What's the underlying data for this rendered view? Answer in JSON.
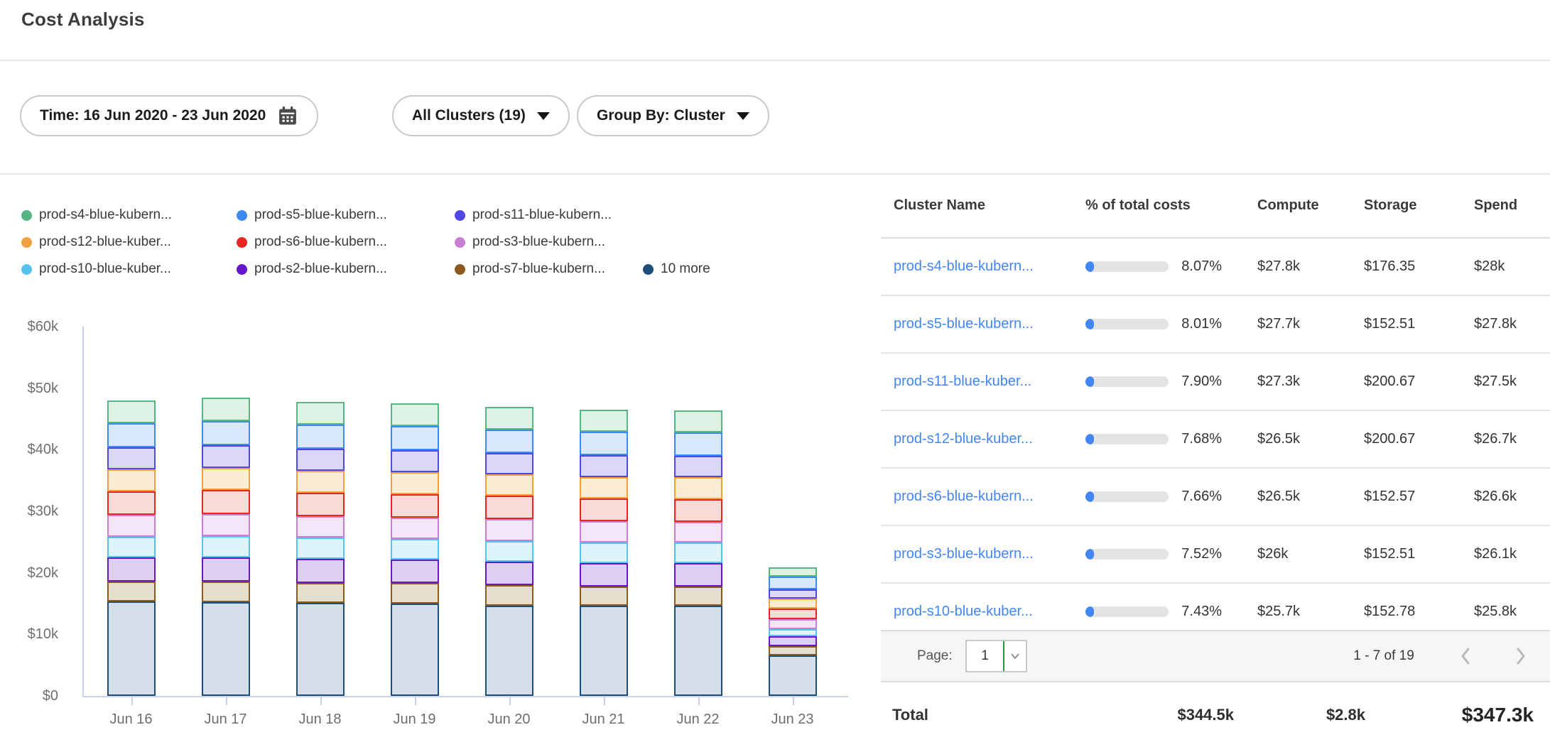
{
  "title": "Cost Analysis",
  "filters": {
    "time": {
      "label": "Time: 16 Jun 2020 - 23 Jun 2020"
    },
    "clusters": {
      "label": "All Clusters (19)"
    },
    "group_by": {
      "label": "Group By: Cluster"
    }
  },
  "chart_data": {
    "type": "bar",
    "stacked": true,
    "unit": "USD thousands",
    "ylim": [
      0,
      60000
    ],
    "grid": false,
    "legend_position": "top",
    "categories": [
      "Jun 16",
      "Jun 17",
      "Jun 18",
      "Jun 19",
      "Jun 20",
      "Jun 21",
      "Jun 22",
      "Jun 23"
    ],
    "y_ticks": [
      {
        "value": 0,
        "label": "$0"
      },
      {
        "value": 10,
        "label": "$10k"
      },
      {
        "value": 20,
        "label": "$20k"
      },
      {
        "value": 30,
        "label": "$30k"
      },
      {
        "value": 40,
        "label": "$40k"
      },
      {
        "value": 50,
        "label": "$50k"
      },
      {
        "value": 60,
        "label": "$60k"
      }
    ],
    "series": [
      {
        "label": "10 more",
        "color": "#1d4e79",
        "fill": "#d4dfea",
        "values": [
          15.3,
          15.2,
          15.1,
          15.0,
          14.7,
          14.6,
          14.6,
          6.6
        ]
      },
      {
        "label": "prod-s7-blue-kubern...",
        "color": "#8a5a1e",
        "fill": "#e7dfce",
        "values": [
          3.3,
          3.4,
          3.3,
          3.3,
          3.3,
          3.2,
          3.2,
          1.5
        ]
      },
      {
        "label": "prod-s2-blue-kubern...",
        "color": "#6717cb",
        "fill": "#ded0f5",
        "values": [
          3.9,
          3.9,
          3.9,
          3.8,
          3.8,
          3.8,
          3.8,
          1.6
        ]
      },
      {
        "label": "prod-s10-blue-kuber...",
        "color": "#56c3ee",
        "fill": "#def4fc",
        "values": [
          3.4,
          3.5,
          3.4,
          3.4,
          3.4,
          3.3,
          3.3,
          1.1
        ]
      },
      {
        "label": "prod-s3-blue-kubern...",
        "color": "#c77fd4",
        "fill": "#f4e5f8",
        "values": [
          3.5,
          3.6,
          3.5,
          3.5,
          3.5,
          3.5,
          3.4,
          1.7
        ]
      },
      {
        "label": "prod-s6-blue-kubern...",
        "color": "#e7271f",
        "fill": "#fadbd8",
        "values": [
          3.8,
          3.9,
          3.8,
          3.8,
          3.8,
          3.7,
          3.7,
          1.7
        ]
      },
      {
        "label": "prod-s12-blue-kuber...",
        "color": "#f0a03c",
        "fill": "#fbecd6",
        "values": [
          3.6,
          3.6,
          3.6,
          3.5,
          3.5,
          3.5,
          3.5,
          1.6
        ]
      },
      {
        "label": "prod-s11-blue-kubern...",
        "color": "#5047e5",
        "fill": "#dbd7f8",
        "values": [
          3.6,
          3.6,
          3.6,
          3.6,
          3.5,
          3.5,
          3.5,
          1.5
        ]
      },
      {
        "label": "prod-s5-blue-kubern...",
        "color": "#3d8af2",
        "fill": "#d9e7fb",
        "values": [
          3.9,
          4.0,
          3.9,
          3.9,
          3.8,
          3.8,
          3.8,
          2.1
        ]
      },
      {
        "label": "prod-s4-blue-kubern...",
        "color": "#57b584",
        "fill": "#def1e5",
        "values": [
          3.7,
          3.8,
          3.7,
          3.7,
          3.7,
          3.6,
          3.6,
          1.5
        ]
      }
    ],
    "legend_rows": [
      [
        9,
        8,
        7
      ],
      [
        6,
        5,
        4
      ],
      [
        3,
        2,
        1,
        0
      ]
    ]
  },
  "table": {
    "columns": [
      "Cluster Name",
      "% of total costs",
      "Compute",
      "Storage",
      "Spend"
    ],
    "rows": [
      {
        "name": "prod-s4-blue-kubern...",
        "pct": "8.07%",
        "pct_value": 8.07,
        "compute": "$27.8k",
        "storage": "$176.35",
        "spend": "$28k"
      },
      {
        "name": "prod-s5-blue-kubern...",
        "pct": "8.01%",
        "pct_value": 8.01,
        "compute": "$27.7k",
        "storage": "$152.51",
        "spend": "$27.8k"
      },
      {
        "name": "prod-s11-blue-kuber...",
        "pct": "7.90%",
        "pct_value": 7.9,
        "compute": "$27.3k",
        "storage": "$200.67",
        "spend": "$27.5k"
      },
      {
        "name": "prod-s12-blue-kuber...",
        "pct": "7.68%",
        "pct_value": 7.68,
        "compute": "$26.5k",
        "storage": "$200.67",
        "spend": "$26.7k"
      },
      {
        "name": "prod-s6-blue-kubern...",
        "pct": "7.66%",
        "pct_value": 7.66,
        "compute": "$26.5k",
        "storage": "$152.57",
        "spend": "$26.6k"
      },
      {
        "name": "prod-s3-blue-kubern...",
        "pct": "7.52%",
        "pct_value": 7.52,
        "compute": "$26k",
        "storage": "$152.51",
        "spend": "$26.1k"
      },
      {
        "name": "prod-s10-blue-kuber...",
        "pct": "7.43%",
        "pct_value": 7.43,
        "compute": "$25.7k",
        "storage": "$152.78",
        "spend": "$25.8k"
      }
    ],
    "link_color": "#4285f4",
    "progress_color": "#4285f4"
  },
  "pagination": {
    "label": "Page:",
    "page": "1",
    "range": "1 - 7 of 19"
  },
  "total": {
    "label": "Total",
    "compute": "$344.5k",
    "storage": "$2.8k",
    "spend": "$347.3k"
  }
}
